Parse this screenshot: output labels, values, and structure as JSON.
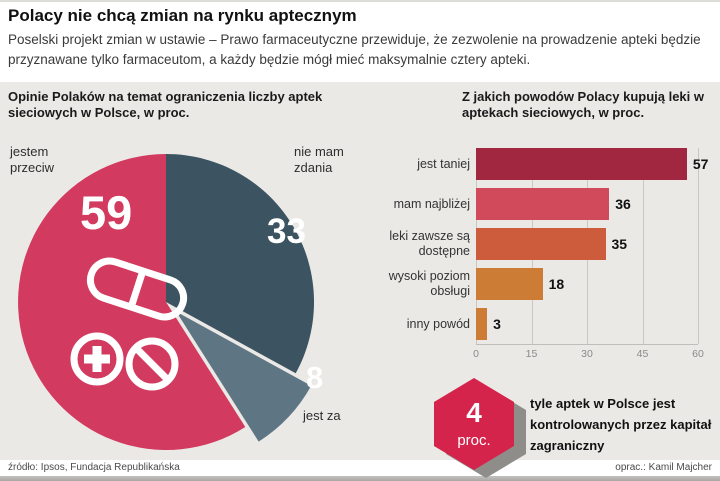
{
  "header": {
    "title": "Polacy nie chcą zmian na rynku aptecznym",
    "lead": "Poselski projekt zmian w ustawie – Prawo farmaceutyczne przewiduje, że zezwolenie na prowadzenie apteki będzie przyznawane tylko farmaceutom, a każdy będzie mógł mieć maksymalnie cztery apteki."
  },
  "chart_data": [
    {
      "type": "pie",
      "title": "Opinie Polaków na temat ograniczenia liczby aptek sieciowych w Polsce, w proc.",
      "units": "proc.",
      "slices": [
        {
          "label": "nie mam zdania",
          "value": 33,
          "color": "#3c5362"
        },
        {
          "label": "jest za",
          "value": 8,
          "color": "#5e7584",
          "exploded": true
        },
        {
          "label": "jestem przeciw",
          "value": 59,
          "color": "#d23a5f"
        }
      ],
      "icons": [
        "capsule-icon",
        "plus-circle-icon",
        "no-sign-icon"
      ]
    },
    {
      "type": "bar",
      "orientation": "horizontal",
      "title": "Z jakich powodów Polacy kupują leki w aptekach sieciowych, w proc.",
      "categories": [
        "jest taniej",
        "mam najbliżej",
        "leki zawsze są dostępne",
        "wysoki poziom obsługi",
        "inny powód"
      ],
      "values": [
        57,
        36,
        35,
        18,
        3
      ],
      "bar_colors": [
        "#a0273f",
        "#d14a5c",
        "#cd5c3c",
        "#cc7c34",
        "#cc7c34"
      ],
      "xlim": [
        0,
        60
      ],
      "xticks": [
        0,
        15,
        30,
        45,
        60
      ],
      "grid": true,
      "legend": false
    }
  ],
  "badge": {
    "value": "4",
    "unit": "proc.",
    "text": "tyle aptek w Polsce jest kontrolowanych przez kapitał zagraniczny",
    "color": "#d5244b"
  },
  "footer": {
    "source": "źródło: Ipsos, Fundacja Republikańska",
    "credit": "oprac.: Kamil Majcher"
  }
}
